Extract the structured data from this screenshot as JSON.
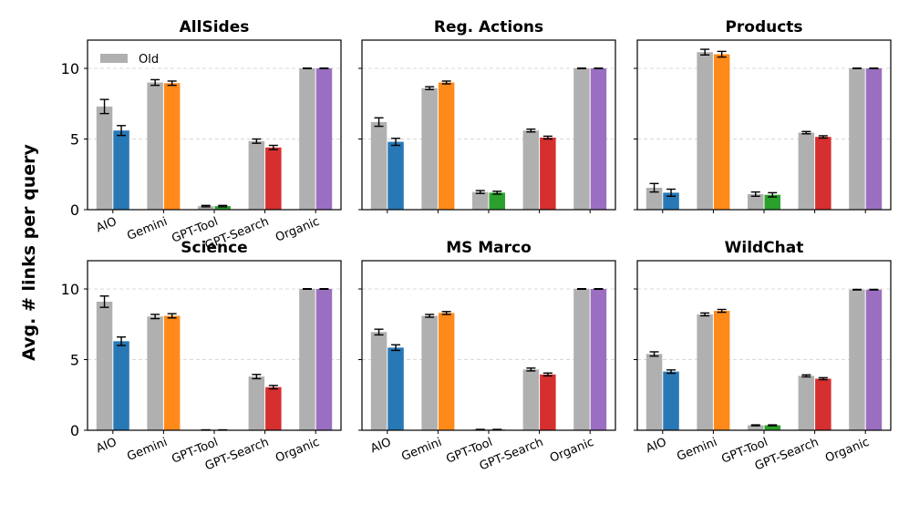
{
  "chart_data": {
    "type": "bar",
    "ylabel": "Avg. # links per query",
    "ylim": [
      0,
      12
    ],
    "yticks": [
      0,
      5,
      10
    ],
    "legend": {
      "label": "Old",
      "location": "top-left (first panel)"
    },
    "grid": "horizontal dashed",
    "categories": [
      "AIO",
      "Gemini",
      "GPT-Tool",
      "GPT-Search",
      "Organic"
    ],
    "colors": {
      "old": "#b0b0b0",
      "AIO": "#2878b5",
      "Gemini": "#ff8a1a",
      "GPT-Tool": "#2ca02c",
      "GPT-Search": "#d62f2f",
      "Organic": "#9a6fc2"
    },
    "panels": [
      {
        "title": "AllSides",
        "old": [
          7.3,
          9.0,
          0.25,
          4.85,
          10.0
        ],
        "old_err": [
          0.5,
          0.2,
          0.05,
          0.15,
          0.02
        ],
        "new": [
          5.6,
          8.95,
          0.25,
          4.4,
          10.0
        ],
        "new_err": [
          0.35,
          0.15,
          0.05,
          0.15,
          0.02
        ],
        "xlabels": true
      },
      {
        "title": "Reg. Actions",
        "old": [
          6.2,
          8.6,
          1.25,
          5.6,
          10.0
        ],
        "old_err": [
          0.3,
          0.1,
          0.1,
          0.1,
          0.02
        ],
        "new": [
          4.8,
          9.0,
          1.2,
          5.1,
          10.0
        ],
        "new_err": [
          0.25,
          0.1,
          0.1,
          0.1,
          0.02
        ],
        "xlabels": false
      },
      {
        "title": "Products",
        "old": [
          1.55,
          11.15,
          1.1,
          5.45,
          10.0
        ],
        "old_err": [
          0.3,
          0.2,
          0.15,
          0.08,
          0.02
        ],
        "new": [
          1.2,
          11.0,
          1.05,
          5.15,
          10.0
        ],
        "new_err": [
          0.25,
          0.2,
          0.15,
          0.08,
          0.02
        ],
        "xlabels": false
      },
      {
        "title": "Science",
        "old": [
          9.1,
          8.05,
          0.02,
          3.8,
          10.0
        ],
        "old_err": [
          0.4,
          0.15,
          0.01,
          0.15,
          0.02
        ],
        "new": [
          6.3,
          8.1,
          0.02,
          3.05,
          10.0
        ],
        "new_err": [
          0.3,
          0.15,
          0.01,
          0.12,
          0.02
        ],
        "xlabels": true
      },
      {
        "title": "MS Marco",
        "old": [
          6.95,
          8.1,
          0.05,
          4.3,
          10.0
        ],
        "old_err": [
          0.2,
          0.1,
          0.01,
          0.1,
          0.02
        ],
        "new": [
          5.85,
          8.3,
          0.05,
          3.95,
          10.0
        ],
        "new_err": [
          0.2,
          0.1,
          0.01,
          0.1,
          0.02
        ],
        "xlabels": true
      },
      {
        "title": "WildChat",
        "old": [
          5.4,
          8.2,
          0.35,
          3.85,
          9.95
        ],
        "old_err": [
          0.15,
          0.1,
          0.03,
          0.07,
          0.02
        ],
        "new": [
          4.15,
          8.45,
          0.35,
          3.65,
          9.95
        ],
        "new_err": [
          0.12,
          0.1,
          0.03,
          0.07,
          0.02
        ],
        "xlabels": true
      }
    ]
  }
}
